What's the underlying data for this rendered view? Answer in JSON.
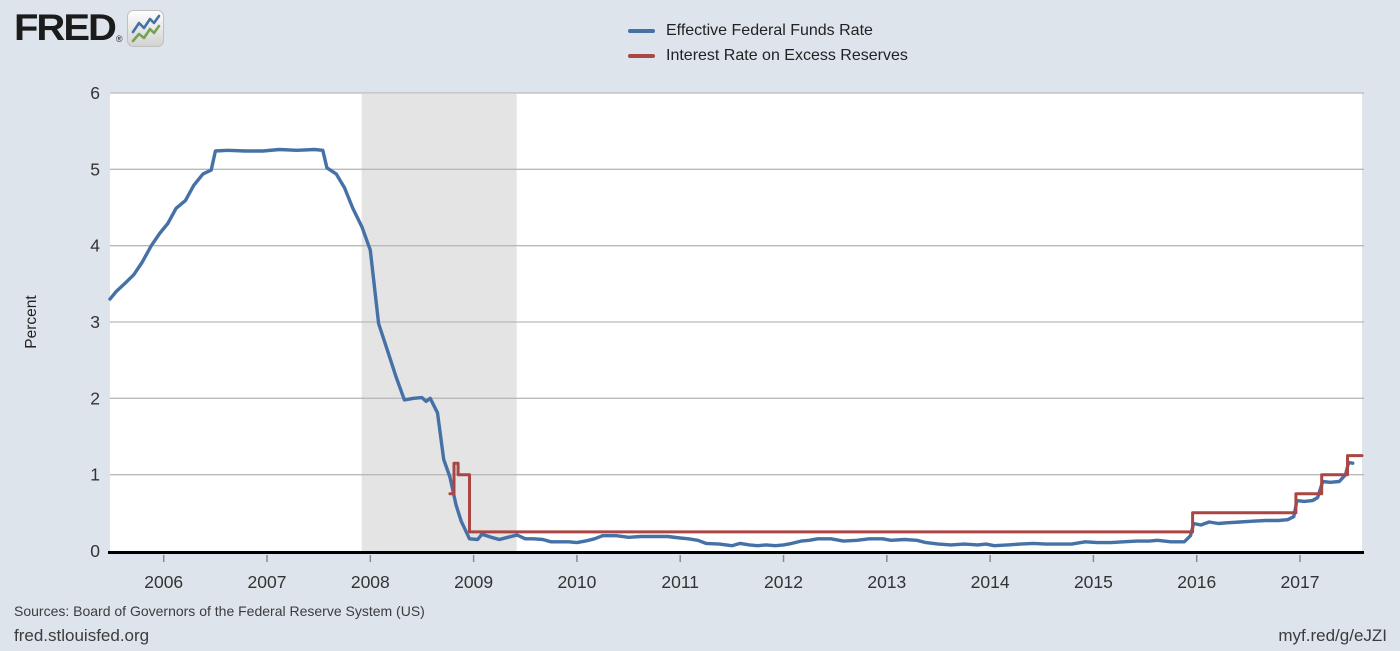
{
  "header": {
    "logo_text": "FRED",
    "logo_reg": "®"
  },
  "footer": {
    "sources": "Sources: Board of Governors of the Federal Reserve System (US)",
    "site": "fred.stlouisfed.org",
    "short_url": "myf.red/g/eJZI"
  },
  "colors": {
    "background": "#dde4ec",
    "plot_background": "#ffffff",
    "recession_band": "#e4e4e4",
    "gridline": "#b9b9b9",
    "axis": "#000000",
    "tick": "#8a8a8a",
    "tick_label": "#333333",
    "series_blue": "#4571a6",
    "series_red": "#aa4643"
  },
  "chart_data": {
    "type": "line",
    "ylabel": "Percent",
    "x_range": [
      2005.48,
      2017.6
    ],
    "y_range": [
      0,
      6
    ],
    "x_ticks": [
      2006,
      2007,
      2008,
      2009,
      2010,
      2011,
      2012,
      2013,
      2014,
      2015,
      2016,
      2017
    ],
    "y_ticks": [
      0,
      1,
      2,
      3,
      4,
      5,
      6
    ],
    "grid": true,
    "legend_position": "top-center",
    "recession_bands": [
      [
        2007.917,
        2009.417
      ]
    ],
    "series": [
      {
        "name": "Effective Federal Funds Rate",
        "color": "#4571a6",
        "style": "line",
        "points": [
          [
            2005.48,
            3.3
          ],
          [
            2005.54,
            3.4
          ],
          [
            2005.62,
            3.5
          ],
          [
            2005.71,
            3.62
          ],
          [
            2005.79,
            3.78
          ],
          [
            2005.88,
            4.0
          ],
          [
            2005.96,
            4.16
          ],
          [
            2006.04,
            4.29
          ],
          [
            2006.12,
            4.49
          ],
          [
            2006.21,
            4.59
          ],
          [
            2006.29,
            4.79
          ],
          [
            2006.38,
            4.94
          ],
          [
            2006.46,
            4.99
          ],
          [
            2006.5,
            5.24
          ],
          [
            2006.62,
            5.25
          ],
          [
            2006.79,
            5.24
          ],
          [
            2006.96,
            5.24
          ],
          [
            2007.12,
            5.26
          ],
          [
            2007.29,
            5.25
          ],
          [
            2007.46,
            5.26
          ],
          [
            2007.54,
            5.25
          ],
          [
            2007.58,
            5.02
          ],
          [
            2007.67,
            4.94
          ],
          [
            2007.75,
            4.76
          ],
          [
            2007.83,
            4.49
          ],
          [
            2007.92,
            4.24
          ],
          [
            2008.0,
            3.94
          ],
          [
            2008.08,
            2.98
          ],
          [
            2008.17,
            2.61
          ],
          [
            2008.25,
            2.28
          ],
          [
            2008.33,
            1.98
          ],
          [
            2008.42,
            2.0
          ],
          [
            2008.5,
            2.01
          ],
          [
            2008.54,
            1.96
          ],
          [
            2008.58,
            2.0
          ],
          [
            2008.65,
            1.81
          ],
          [
            2008.71,
            1.2
          ],
          [
            2008.77,
            0.97
          ],
          [
            2008.83,
            0.6
          ],
          [
            2008.88,
            0.39
          ],
          [
            2008.96,
            0.16
          ],
          [
            2009.04,
            0.15
          ],
          [
            2009.08,
            0.22
          ],
          [
            2009.17,
            0.18
          ],
          [
            2009.25,
            0.15
          ],
          [
            2009.33,
            0.18
          ],
          [
            2009.42,
            0.21
          ],
          [
            2009.5,
            0.16
          ],
          [
            2009.58,
            0.16
          ],
          [
            2009.67,
            0.15
          ],
          [
            2009.75,
            0.12
          ],
          [
            2009.83,
            0.12
          ],
          [
            2009.92,
            0.12
          ],
          [
            2010.0,
            0.11
          ],
          [
            2010.08,
            0.13
          ],
          [
            2010.17,
            0.16
          ],
          [
            2010.25,
            0.2
          ],
          [
            2010.38,
            0.2
          ],
          [
            2010.5,
            0.18
          ],
          [
            2010.62,
            0.19
          ],
          [
            2010.75,
            0.19
          ],
          [
            2010.88,
            0.19
          ],
          [
            2011.0,
            0.17
          ],
          [
            2011.08,
            0.16
          ],
          [
            2011.17,
            0.14
          ],
          [
            2011.25,
            0.1
          ],
          [
            2011.38,
            0.09
          ],
          [
            2011.5,
            0.07
          ],
          [
            2011.58,
            0.1
          ],
          [
            2011.67,
            0.08
          ],
          [
            2011.75,
            0.07
          ],
          [
            2011.83,
            0.08
          ],
          [
            2011.92,
            0.07
          ],
          [
            2012.0,
            0.08
          ],
          [
            2012.08,
            0.1
          ],
          [
            2012.17,
            0.13
          ],
          [
            2012.25,
            0.14
          ],
          [
            2012.33,
            0.16
          ],
          [
            2012.46,
            0.16
          ],
          [
            2012.58,
            0.13
          ],
          [
            2012.71,
            0.14
          ],
          [
            2012.83,
            0.16
          ],
          [
            2012.96,
            0.16
          ],
          [
            2013.04,
            0.14
          ],
          [
            2013.17,
            0.15
          ],
          [
            2013.29,
            0.14
          ],
          [
            2013.38,
            0.11
          ],
          [
            2013.5,
            0.09
          ],
          [
            2013.62,
            0.08
          ],
          [
            2013.75,
            0.09
          ],
          [
            2013.88,
            0.08
          ],
          [
            2013.96,
            0.09
          ],
          [
            2014.04,
            0.07
          ],
          [
            2014.17,
            0.08
          ],
          [
            2014.29,
            0.09
          ],
          [
            2014.42,
            0.1
          ],
          [
            2014.54,
            0.09
          ],
          [
            2014.67,
            0.09
          ],
          [
            2014.79,
            0.09
          ],
          [
            2014.92,
            0.12
          ],
          [
            2015.04,
            0.11
          ],
          [
            2015.17,
            0.11
          ],
          [
            2015.29,
            0.12
          ],
          [
            2015.42,
            0.13
          ],
          [
            2015.54,
            0.13
          ],
          [
            2015.62,
            0.14
          ],
          [
            2015.75,
            0.12
          ],
          [
            2015.88,
            0.12
          ],
          [
            2015.94,
            0.2
          ],
          [
            2015.97,
            0.36
          ],
          [
            2016.04,
            0.34
          ],
          [
            2016.12,
            0.38
          ],
          [
            2016.21,
            0.36
          ],
          [
            2016.29,
            0.37
          ],
          [
            2016.42,
            0.38
          ],
          [
            2016.54,
            0.39
          ],
          [
            2016.67,
            0.4
          ],
          [
            2016.79,
            0.4
          ],
          [
            2016.88,
            0.41
          ],
          [
            2016.94,
            0.45
          ],
          [
            2016.97,
            0.66
          ],
          [
            2017.04,
            0.65
          ],
          [
            2017.12,
            0.66
          ],
          [
            2017.17,
            0.7
          ],
          [
            2017.22,
            0.91
          ],
          [
            2017.29,
            0.9
          ],
          [
            2017.38,
            0.91
          ],
          [
            2017.44,
            1.0
          ],
          [
            2017.47,
            1.16
          ],
          [
            2017.51,
            1.15
          ]
        ]
      },
      {
        "name": "Interest Rate on Excess Reserves",
        "color": "#aa4643",
        "style": "step",
        "points": [
          [
            2008.77,
            0.75
          ],
          [
            2008.81,
            1.15
          ],
          [
            2008.85,
            1.0
          ],
          [
            2008.96,
            0.25
          ],
          [
            2015.96,
            0.5
          ],
          [
            2016.96,
            0.75
          ],
          [
            2017.21,
            1.0
          ],
          [
            2017.46,
            1.25
          ],
          [
            2017.6,
            1.25
          ]
        ]
      }
    ]
  }
}
